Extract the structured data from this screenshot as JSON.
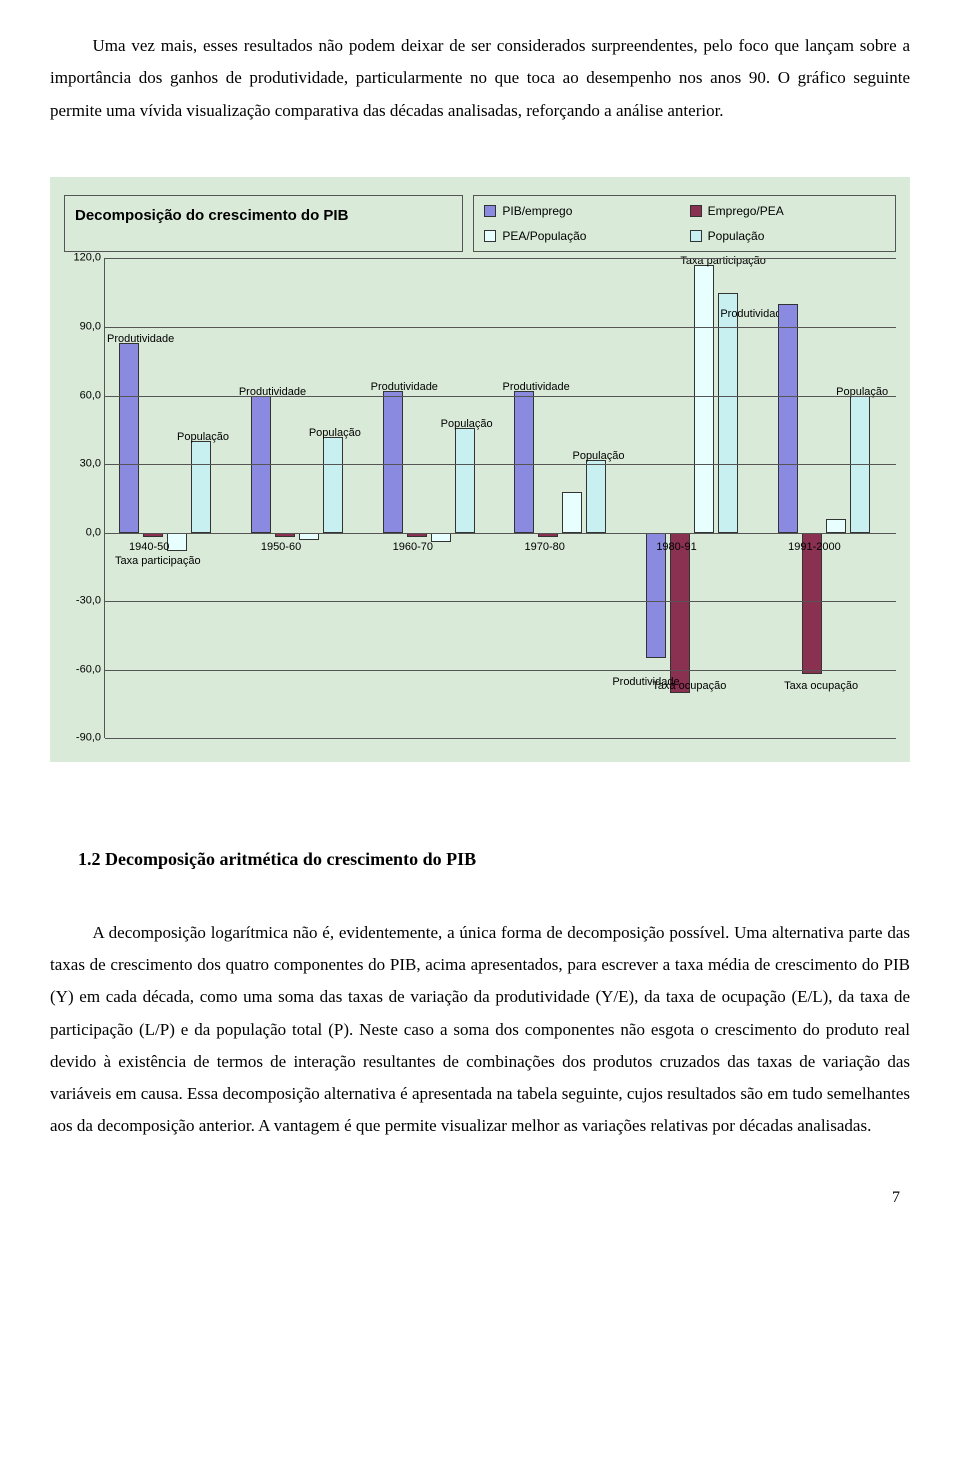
{
  "para1": "Uma vez mais, esses resultados não podem deixar de ser considerados surpreendentes, pelo foco que lançam sobre a importância dos ganhos de produtividade, particularmente no que toca ao desempenho nos anos 90. O gráfico seguinte permite uma vívida visualização comparativa das décadas analisadas, reforçando a análise anterior.",
  "chart": {
    "title": "Decomposição do crescimento do PIB",
    "legend": [
      {
        "label": "PIB/emprego",
        "color": "#8a8ae0"
      },
      {
        "label": "Emprego/PEA",
        "color": "#8a3050"
      },
      {
        "label": "PEA/População",
        "color": "#e8ffff"
      },
      {
        "label": "População",
        "color": "#c8f0f0"
      }
    ],
    "ymin": -90,
    "ymax": 120,
    "ystep": 30,
    "ylabels": [
      "120,0",
      "90,0",
      "60,0",
      "30,0",
      "0,0",
      "-30,0",
      "-60,0",
      "-90,0"
    ],
    "colors": {
      "pib_emprego": "#8a8ae0",
      "emprego_pea": "#8a3050",
      "pea_pop": "#e8ffff",
      "populacao": "#c8f0f0"
    },
    "groups": [
      {
        "x": "1940-50",
        "pib_emprego": 83,
        "emprego_pea": -2,
        "pea_pop": -8,
        "populacao": 40,
        "ann_top": "Produtividade",
        "ann_bot": "Taxa participação",
        "ann_pop": "População"
      },
      {
        "x": "1950-60",
        "pib_emprego": 60,
        "emprego_pea": -2,
        "pea_pop": -3,
        "populacao": 42,
        "ann_top": "Produtividade",
        "ann_pop": "População"
      },
      {
        "x": "1960-70",
        "pib_emprego": 62,
        "emprego_pea": -2,
        "pea_pop": -4,
        "populacao": 46,
        "ann_top": "Produtividade",
        "ann_pop": "População"
      },
      {
        "x": "1970-80",
        "pib_emprego": 62,
        "emprego_pea": -2,
        "pea_pop": 18,
        "populacao": 32,
        "ann_top": "Produtividade",
        "ann_pop": "População"
      },
      {
        "x": "1980-91",
        "pib_emprego": -55,
        "emprego_pea": -70,
        "pea_pop": 117,
        "populacao": 105,
        "ann_pea": "Taxa participação",
        "ann_bot2": "Taxa ocupação",
        "ann_prod": "Produtividade",
        "ann_right": "Produtividade"
      },
      {
        "x": "1991-2000",
        "pib_emprego": 100,
        "emprego_pea": -62,
        "pea_pop": 6,
        "populacao": 60,
        "ann_pop": "População",
        "ann_bot2": "Taxa ocupação"
      }
    ]
  },
  "section_heading": "1.2 Decomposição aritmética do crescimento do PIB",
  "para2": "A decomposição logarítmica não é, evidentemente, a única forma de decomposição possível. Uma alternativa parte das taxas de crescimento dos quatro componentes do PIB, acima apresentados, para escrever a taxa média de crescimento do PIB (Y) em cada década, como uma soma das taxas de variação da produtividade (Y/E), da taxa de ocupação (E/L), da taxa de participação (L/P) e da população total (P). Neste caso a soma dos componentes não esgota o crescimento do produto real devido à existência de termos de interação resultantes de combinações dos produtos cruzados das taxas de variação das variáveis em causa. Essa decomposição alternativa é apresentada na tabela seguinte, cujos resultados são em tudo semelhantes aos da decomposição anterior. A vantagem é que permite visualizar melhor as variações relativas por décadas analisadas.",
  "page_number": "7"
}
